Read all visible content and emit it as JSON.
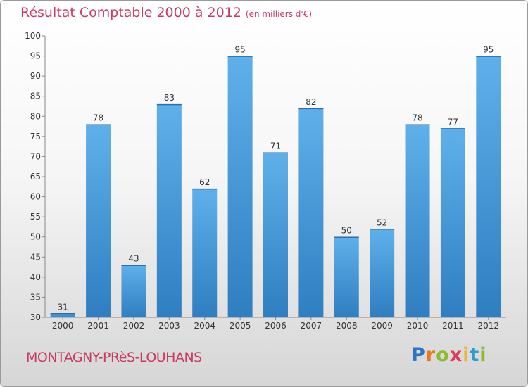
{
  "title": "Résultat Comptable 2000 à 2012",
  "subtitle": "(en milliers d'€)",
  "commune": "MONTAGNY-PRèS-LOUHANS",
  "brand": {
    "letters": [
      "P",
      "r",
      "o",
      "x",
      "i",
      "t",
      "i"
    ],
    "colors": [
      "#2e73c7",
      "#e8791f",
      "#8dbb2f",
      "#e03a5a",
      "#f0b43a",
      "#2e9bd6",
      "#8dbb2f"
    ]
  },
  "colors": {
    "bar_light": "#5fb0ea",
    "bar_dark": "#2f7ec1",
    "text_accent": "#c83c63"
  },
  "chart_data": {
    "type": "bar",
    "categories": [
      "2000",
      "2001",
      "2002",
      "2003",
      "2004",
      "2005",
      "2006",
      "2007",
      "2008",
      "2009",
      "2010",
      "2011",
      "2012"
    ],
    "values": [
      31,
      78,
      43,
      83,
      62,
      95,
      71,
      82,
      50,
      52,
      78,
      77,
      95
    ],
    "yticks": [
      30,
      35,
      40,
      45,
      50,
      55,
      60,
      65,
      70,
      75,
      80,
      85,
      90,
      95,
      100
    ],
    "ylim": [
      30,
      100
    ],
    "grid": false,
    "title": "Résultat Comptable 2000 à 2012",
    "subtitle": "(en milliers d'€)",
    "xlabel": "",
    "ylabel": ""
  }
}
